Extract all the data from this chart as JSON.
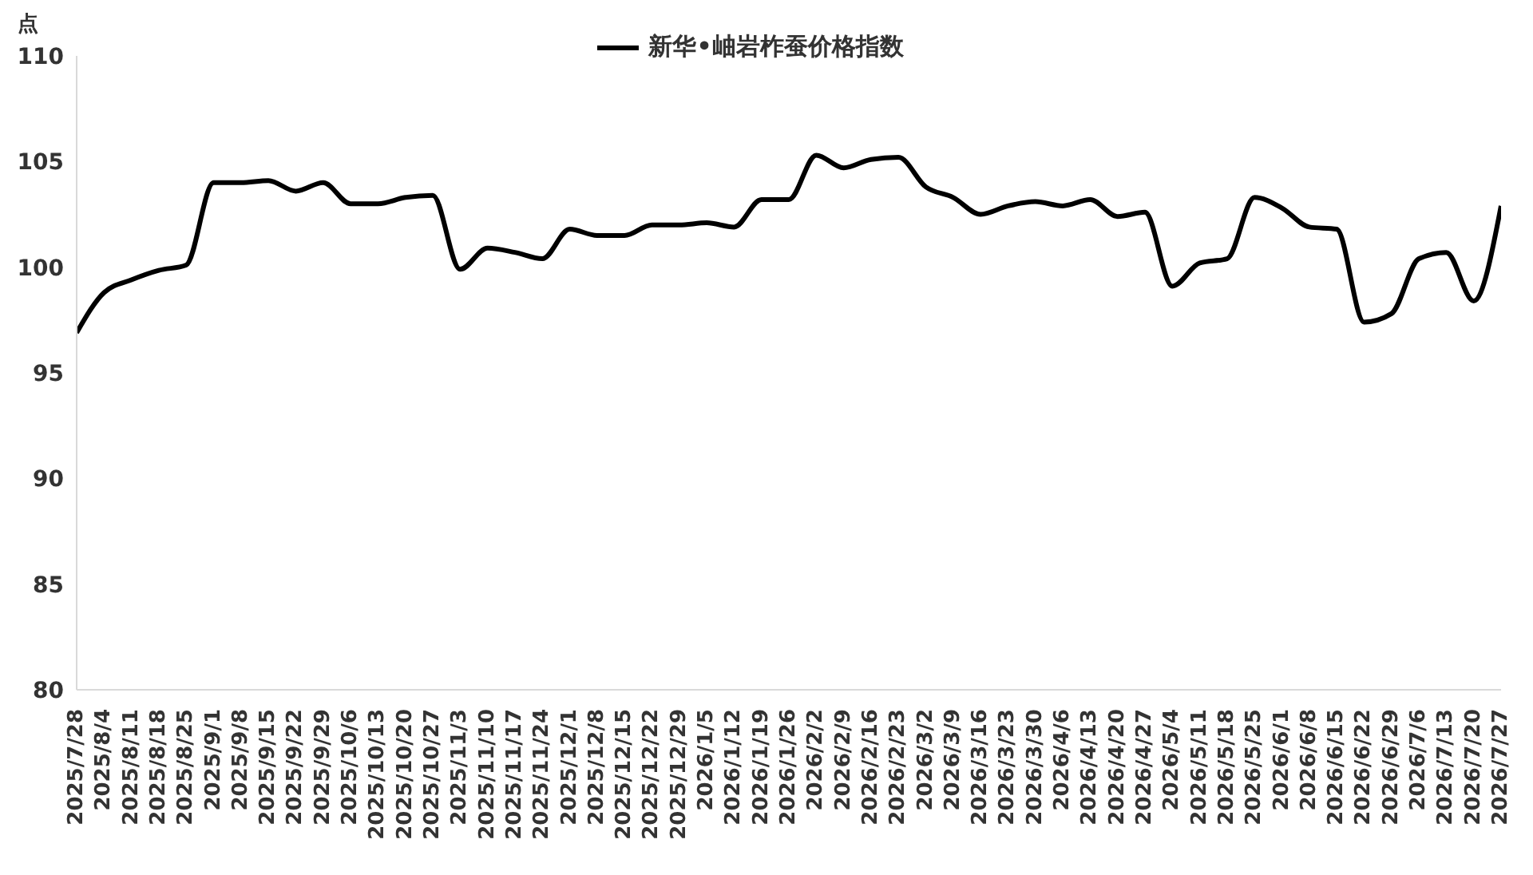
{
  "chart_data": {
    "type": "line",
    "ylabel": "点",
    "categories": [
      "2025/7/28",
      "2025/8/4",
      "2025/8/11",
      "2025/8/18",
      "2025/8/25",
      "2025/9/1",
      "2025/9/8",
      "2025/9/15",
      "2025/9/22",
      "2025/9/29",
      "2025/10/6",
      "2025/10/13",
      "2025/10/20",
      "2025/10/27",
      "2025/11/3",
      "2025/11/10",
      "2025/11/17",
      "2025/11/24",
      "2025/12/1",
      "2025/12/8",
      "2025/12/15",
      "2025/12/22",
      "2025/12/29",
      "2026/1/5",
      "2026/1/12",
      "2026/1/19",
      "2026/1/26",
      "2026/2/2",
      "2026/2/9",
      "2026/2/16",
      "2026/2/23",
      "2026/3/2",
      "2026/3/9",
      "2026/3/16",
      "2026/3/23",
      "2026/3/30",
      "2026/4/6",
      "2026/4/13",
      "2026/4/20",
      "2026/4/27",
      "2026/5/4",
      "2026/5/11",
      "2026/5/18",
      "2026/5/25",
      "2026/6/1",
      "2026/6/8",
      "2026/6/15",
      "2026/6/22",
      "2026/6/29",
      "2026/7/6",
      "2026/7/13",
      "2026/7/20",
      "2026/7/27"
    ],
    "series": [
      {
        "name": "新华•岫岩柞蚕价格指数",
        "color": "#000000",
        "values": [
          96.9,
          98.8,
          99.4,
          99.85,
          100.1,
          104.0,
          104.0,
          104.1,
          103.6,
          104.0,
          103.0,
          103.0,
          103.3,
          103.4,
          99.9,
          100.9,
          100.7,
          100.4,
          101.8,
          101.5,
          101.5,
          102.0,
          102.0,
          102.1,
          101.9,
          103.2,
          103.2,
          105.3,
          104.7,
          105.1,
          105.2,
          103.8,
          103.3,
          102.5,
          102.9,
          103.1,
          102.9,
          103.2,
          102.4,
          102.6,
          99.1,
          100.2,
          100.4,
          103.3,
          102.8,
          101.9,
          101.8,
          97.4,
          97.8,
          100.4,
          100.7,
          98.4,
          102.9
        ]
      }
    ],
    "ylim": [
      80,
      110
    ],
    "yticks": [
      80,
      85,
      90,
      95,
      100,
      105,
      110
    ],
    "grid": false,
    "legend": "top",
    "marker": "none",
    "line_style": "solid"
  }
}
